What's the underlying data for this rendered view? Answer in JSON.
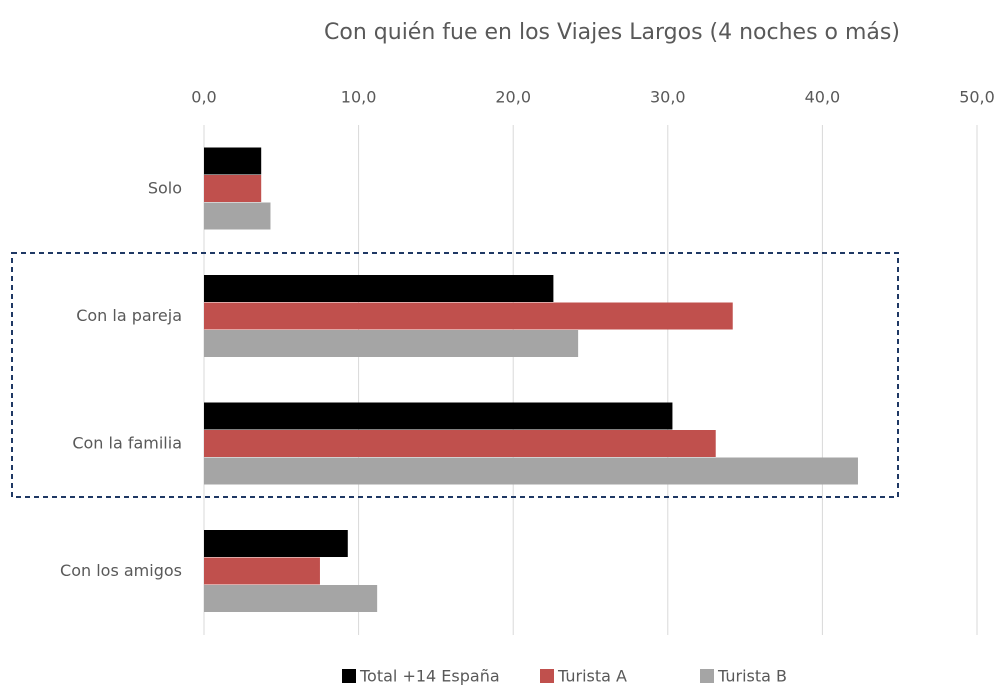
{
  "chart_data": {
    "type": "bar",
    "orientation": "horizontal",
    "title": "Con quién fue en los Viajes Largos (4 noches o más)",
    "categories": [
      "Solo",
      "Con la pareja",
      "Con la familia",
      "Con los amigos"
    ],
    "series": [
      {
        "name": "Total +14 España",
        "color": "#000000",
        "values": [
          3.7,
          22.6,
          30.3,
          9.3
        ]
      },
      {
        "name": "Turista A",
        "color": "#c0504d",
        "values": [
          3.7,
          34.2,
          33.1,
          7.5
        ]
      },
      {
        "name": "Turista B",
        "color": "#a5a5a5",
        "values": [
          4.3,
          24.2,
          42.3,
          11.2
        ]
      }
    ],
    "xlim": [
      0,
      50
    ],
    "xticks": [
      {
        "value": 0,
        "label": "0,0"
      },
      {
        "value": 10,
        "label": "10,0"
      },
      {
        "value": 20,
        "label": "20,0"
      },
      {
        "value": 30,
        "label": "30,0"
      },
      {
        "value": 40,
        "label": "40,0"
      },
      {
        "value": 50,
        "label": "50,0"
      }
    ],
    "grid": true,
    "legend": "bottom"
  }
}
